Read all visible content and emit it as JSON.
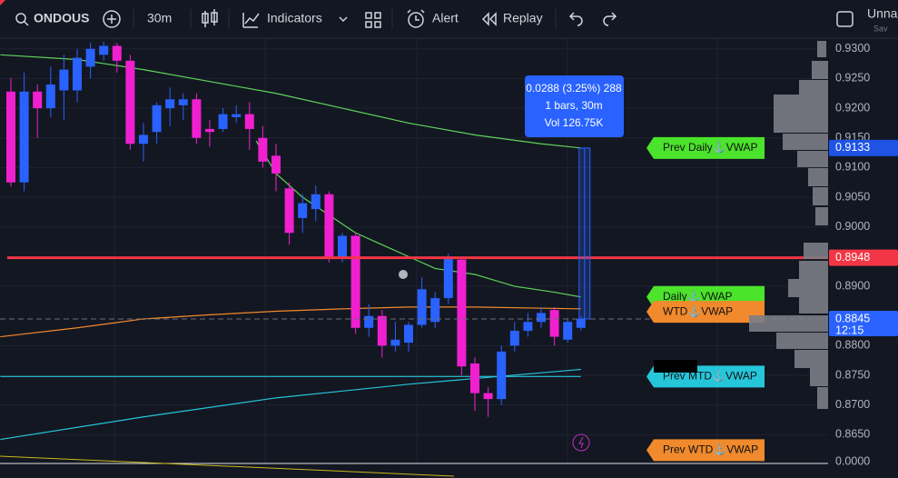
{
  "toolbar": {
    "symbol": "ONDOUS",
    "interval": "30m",
    "indicators": "Indicators",
    "alert": "Alert",
    "replay": "Replay",
    "layout_name": "Unna",
    "layout_status": "Sav"
  },
  "chart": {
    "type": "candlestick",
    "up_color": "#2962ff",
    "down_color": "#f020d0",
    "ylim": [
      0.86,
      0.9318
    ],
    "yticks": [
      {
        "value": 0.93,
        "label": "0.9300"
      },
      {
        "value": 0.925,
        "label": "0.9250"
      },
      {
        "value": 0.92,
        "label": "0.9200"
      },
      {
        "value": 0.915,
        "label": "0.9150"
      },
      {
        "value": 0.91,
        "label": "0.9100"
      },
      {
        "value": 0.905,
        "label": "0.9050"
      },
      {
        "value": 0.9,
        "label": "0.9000"
      },
      {
        "value": 0.89,
        "label": "0.8900"
      },
      {
        "value": 0.88,
        "label": "0.8800"
      },
      {
        "value": 0.875,
        "label": "0.8750"
      },
      {
        "value": 0.87,
        "label": "0.8700"
      },
      {
        "value": 0.865,
        "label": "0.8650"
      }
    ],
    "open": [
      0.9228,
      0.9075,
      0.9228,
      0.92,
      0.923,
      0.923,
      0.927,
      0.929,
      0.9305,
      0.928,
      0.914,
      0.916,
      0.92,
      0.9205,
      0.9215,
      0.9165,
      0.9165,
      0.9185,
      0.919,
      0.915,
      0.912,
      0.9065,
      0.9015,
      0.903,
      0.9055,
      0.895,
      0.8985,
      0.883,
      0.885,
      0.88,
      0.8805,
      0.8835,
      0.884,
      0.888,
      0.8945,
      0.877,
      0.872,
      0.871,
      0.88,
      0.8825,
      0.884,
      0.886,
      0.881,
      0.883
    ],
    "high": [
      0.9251,
      0.926,
      0.924,
      0.927,
      0.929,
      0.93,
      0.931,
      0.9312,
      0.931,
      0.929,
      0.9175,
      0.921,
      0.9235,
      0.9225,
      0.9225,
      0.918,
      0.92,
      0.9205,
      0.921,
      0.917,
      0.914,
      0.9075,
      0.9055,
      0.907,
      0.906,
      0.899,
      0.899,
      0.887,
      0.886,
      0.884,
      0.884,
      0.8915,
      0.889,
      0.8955,
      0.895,
      0.878,
      0.873,
      0.88,
      0.884,
      0.8855,
      0.8865,
      0.8865,
      0.8845,
      0.885
    ],
    "low": [
      0.9068,
      0.906,
      0.915,
      0.9185,
      0.918,
      0.921,
      0.925,
      0.928,
      0.926,
      0.913,
      0.911,
      0.914,
      0.917,
      0.918,
      0.914,
      0.9135,
      0.916,
      0.9175,
      0.913,
      0.91,
      0.906,
      0.897,
      0.899,
      0.901,
      0.894,
      0.894,
      0.882,
      0.8815,
      0.878,
      0.879,
      0.879,
      0.883,
      0.883,
      0.887,
      0.875,
      0.869,
      0.868,
      0.87,
      0.879,
      0.8815,
      0.883,
      0.88,
      0.8805,
      0.8825
    ],
    "close": [
      0.9075,
      0.9228,
      0.92,
      0.924,
      0.9265,
      0.9285,
      0.93,
      0.9305,
      0.928,
      0.914,
      0.9155,
      0.9205,
      0.9215,
      0.9215,
      0.915,
      0.916,
      0.919,
      0.919,
      0.9165,
      0.911,
      0.909,
      0.899,
      0.904,
      0.9055,
      0.895,
      0.8985,
      0.883,
      0.885,
      0.88,
      0.881,
      0.8835,
      0.8895,
      0.888,
      0.895,
      0.8765,
      0.872,
      0.871,
      0.879,
      0.8825,
      0.884,
      0.8855,
      0.8815,
      0.884,
      0.8845
    ],
    "lines": [
      {
        "color": "#5fd35a",
        "x": [
          -0.8,
          5,
          10,
          15,
          20,
          25,
          30,
          35,
          40,
          43
        ],
        "values": [
          0.929,
          0.9282,
          0.9265,
          0.9245,
          0.9225,
          0.92,
          0.9175,
          0.9155,
          0.914,
          0.9133
        ]
      },
      {
        "color": "#5fd35a",
        "x": [
          18.5,
          20,
          22,
          24,
          26,
          28,
          30,
          32,
          35,
          38,
          41,
          43
        ],
        "values": [
          0.9145,
          0.909,
          0.905,
          0.902,
          0.899,
          0.897,
          0.895,
          0.893,
          0.892,
          0.89,
          0.889,
          0.8882
        ]
      },
      {
        "color": "#f08a2c",
        "x": [
          -0.8,
          5,
          10,
          15,
          20,
          25,
          30,
          35,
          43
        ],
        "values": [
          0.8815,
          0.883,
          0.8845,
          0.8852,
          0.8858,
          0.8862,
          0.8865,
          0.8865,
          0.8862
        ]
      },
      {
        "color": "#26c6da",
        "x": [
          -0.8,
          43
        ],
        "values": [
          0.8748,
          0.8748
        ]
      },
      {
        "color": "#26c6da",
        "x": [
          -0.8,
          10,
          20,
          30,
          43
        ],
        "values": [
          0.8642,
          0.868,
          0.8712,
          0.8735,
          0.876
        ]
      }
    ],
    "price_tags": [
      {
        "value": 0.9133,
        "color": "#1e53e5"
      },
      {
        "value": 0.8948,
        "color": "#f23645"
      },
      {
        "value": 0.8845,
        "color": "#2962ff"
      }
    ],
    "countdown": "12:15",
    "flags": [
      {
        "text": "Prev Daily⚓VWAP",
        "value": 0.9133,
        "color": "#4be32b"
      },
      {
        "text": "Daily⚓VWAP",
        "value": 0.8882,
        "color": "#4be32b"
      },
      {
        "text": "WTD⚓VWAP",
        "value": 0.8857,
        "color": "#f08a2c"
      },
      {
        "text": "Prev MTD⚓VWAP",
        "value": 0.8748,
        "color": "#26c6da"
      },
      {
        "text": "Prev WTD⚓VWAP",
        "value": 0.8624,
        "color": "#f08a2c"
      }
    ],
    "measure": {
      "from": 0.8845,
      "to": 0.9133,
      "lines": [
        "0.0288 (3.25%) 288",
        "1 bars, 30m",
        "Vol 126.75K"
      ]
    },
    "lower_pane": {
      "label": "0.0000"
    }
  }
}
